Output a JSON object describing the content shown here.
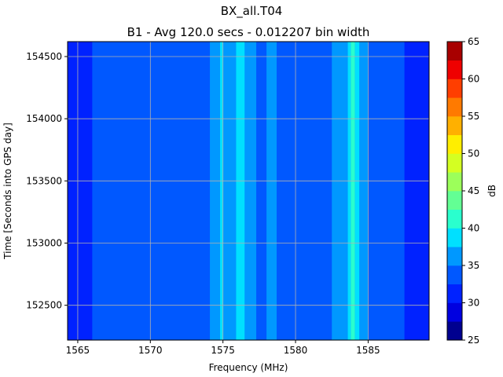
{
  "figure": {
    "title": "BX_all.T04",
    "subtitle": "B1 - Avg 120.0 secs - 0.012207 bin width"
  },
  "chart_data": {
    "type": "heatmap",
    "title": "BX_all.T04",
    "subtitle": "B1 - Avg 120.0 secs - 0.012207 bin width",
    "xlabel": "Frequency (MHz)",
    "ylabel": "Time [Seconds into GPS day]",
    "xlim": [
      1564.3,
      1589.2
    ],
    "ylim": [
      152220,
      154620
    ],
    "x_ticks": [
      1565,
      1570,
      1575,
      1580,
      1585
    ],
    "y_ticks": [
      152500,
      153000,
      153500,
      154000,
      154500
    ],
    "grid": true,
    "colorbar": {
      "label": "dB",
      "levels": [
        25,
        27.5,
        30,
        32.5,
        35,
        37.5,
        40,
        42.5,
        45,
        47.5,
        50,
        52.5,
        55,
        57.5,
        60,
        62.5,
        65
      ],
      "tick_values": [
        25,
        30,
        35,
        40,
        45,
        50,
        55,
        60,
        65
      ],
      "colors": [
        "#00008f",
        "#0000e0",
        "#0022ff",
        "#0058ff",
        "#0098ff",
        "#00e0ff",
        "#2affce",
        "#63ff94",
        "#9cff5a",
        "#d4ff22",
        "#ffee00",
        "#ffb000",
        "#ff7a00",
        "#ff3e00",
        "#ef0000",
        "#a80000"
      ]
    },
    "bands": [
      {
        "x_start": 1564.3,
        "x_end": 1566.0,
        "level_db": 31
      },
      {
        "x_start": 1566.0,
        "x_end": 1574.1,
        "level_db": 33
      },
      {
        "x_start": 1574.1,
        "x_end": 1574.8,
        "level_db": 36
      },
      {
        "x_start": 1574.8,
        "x_end": 1575.0,
        "level_db": 39
      },
      {
        "x_start": 1575.0,
        "x_end": 1575.9,
        "level_db": 36
      },
      {
        "x_start": 1575.9,
        "x_end": 1576.5,
        "level_db": 39
      },
      {
        "x_start": 1576.5,
        "x_end": 1577.3,
        "level_db": 36
      },
      {
        "x_start": 1577.3,
        "x_end": 1578.0,
        "level_db": 33
      },
      {
        "x_start": 1578.0,
        "x_end": 1578.7,
        "level_db": 36
      },
      {
        "x_start": 1578.7,
        "x_end": 1582.5,
        "level_db": 33
      },
      {
        "x_start": 1582.5,
        "x_end": 1583.6,
        "level_db": 36
      },
      {
        "x_start": 1583.6,
        "x_end": 1583.8,
        "level_db": 39
      },
      {
        "x_start": 1583.8,
        "x_end": 1584.1,
        "level_db": 42
      },
      {
        "x_start": 1584.1,
        "x_end": 1584.4,
        "level_db": 39
      },
      {
        "x_start": 1584.4,
        "x_end": 1585.0,
        "level_db": 36
      },
      {
        "x_start": 1585.0,
        "x_end": 1587.5,
        "level_db": 33
      },
      {
        "x_start": 1587.5,
        "x_end": 1589.2,
        "level_db": 31
      }
    ]
  }
}
